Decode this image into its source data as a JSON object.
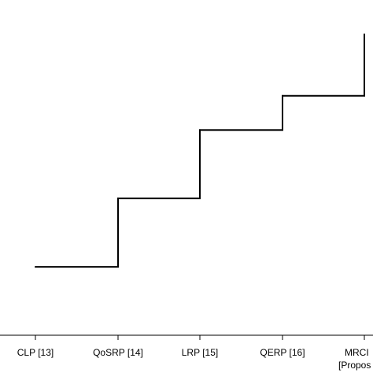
{
  "chart_data": {
    "type": "line",
    "step": "post",
    "categories": [
      "CLP [13]",
      "QoSRP [14]",
      "LRP [15]",
      "QERP [16]",
      "MRCI\n[Propos"
    ],
    "series": [
      {
        "values": [
          1,
          2,
          3,
          3.5,
          4.4
        ]
      }
    ],
    "title": "",
    "xlabel": "",
    "ylabel": "",
    "ylim": [
      0,
      4.9
    ],
    "grid": false,
    "legend": "none",
    "colors": {
      "line": "#000000",
      "axis": "#000000",
      "background": "#ffffff"
    }
  }
}
